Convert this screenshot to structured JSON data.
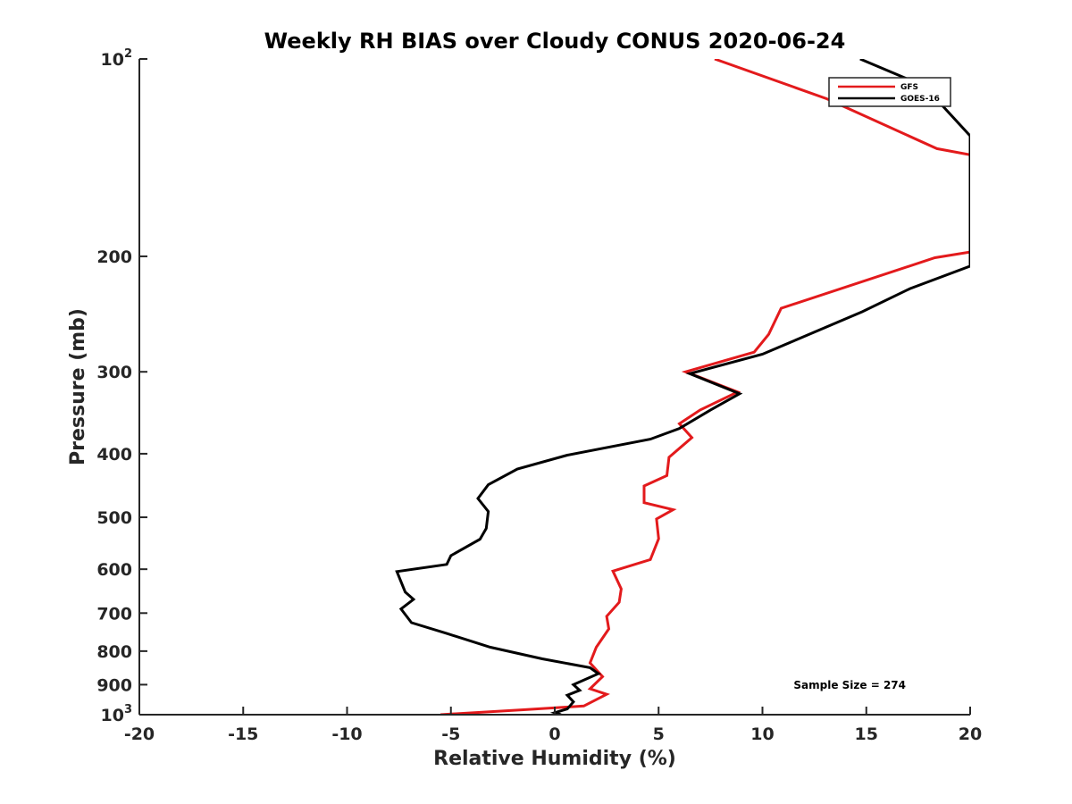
{
  "chart_data": {
    "type": "line",
    "title": "Weekly RH BIAS over Cloudy CONUS 2020-06-24",
    "xlabel": "Relative Humidity (%)",
    "ylabel": "Pressure (mb)",
    "xlim": [
      -20,
      20
    ],
    "ylim": [
      100,
      1000
    ],
    "yscale": "log",
    "y_reversed": true,
    "x_ticks": [
      "-20",
      "-15",
      "-10",
      "-5",
      "0",
      "5",
      "10",
      "15",
      "20"
    ],
    "y_ticks": [
      {
        "value": 100,
        "base": "10",
        "exp": "2"
      },
      {
        "value": 200,
        "label": "200"
      },
      {
        "value": 300,
        "label": "300"
      },
      {
        "value": 400,
        "label": "400"
      },
      {
        "value": 500,
        "label": "500"
      },
      {
        "value": 600,
        "label": "600"
      },
      {
        "value": 700,
        "label": "700"
      },
      {
        "value": 800,
        "label": "800"
      },
      {
        "value": 900,
        "label": "900"
      },
      {
        "value": 1000,
        "base": "10",
        "exp": "3"
      }
    ],
    "legend_position": "top-right",
    "annotation": "Sample Size = 274",
    "series": [
      {
        "name": "GFS",
        "color": "#e31a1c",
        "points": [
          [
            7.7,
            100
          ],
          [
            13.1,
            115
          ],
          [
            18.4,
            137
          ],
          [
            20,
            140
          ],
          [
            20,
            197
          ],
          [
            18.3,
            201
          ],
          [
            10.9,
            240
          ],
          [
            10.3,
            263
          ],
          [
            9.6,
            280
          ],
          [
            6.3,
            300
          ],
          [
            8.8,
            322
          ],
          [
            7.0,
            343
          ],
          [
            6.0,
            360
          ],
          [
            6.6,
            378
          ],
          [
            5.5,
            405
          ],
          [
            5.4,
            432
          ],
          [
            4.3,
            448
          ],
          [
            4.3,
            475
          ],
          [
            5.7,
            487
          ],
          [
            4.9,
            503
          ],
          [
            5.0,
            539
          ],
          [
            4.6,
            580
          ],
          [
            2.8,
            604
          ],
          [
            3.2,
            643
          ],
          [
            3.1,
            674
          ],
          [
            2.5,
            708
          ],
          [
            2.6,
            740
          ],
          [
            2.0,
            789
          ],
          [
            1.7,
            834
          ],
          [
            2.3,
            875
          ],
          [
            1.7,
            913
          ],
          [
            2.5,
            931
          ],
          [
            1.4,
            970
          ],
          [
            -1.5,
            983
          ],
          [
            -5.5,
            1000
          ]
        ]
      },
      {
        "name": "GOES-16",
        "color": "#000000",
        "points": [
          [
            14.7,
            100
          ],
          [
            17.8,
            110
          ],
          [
            20,
            131
          ],
          [
            20,
            207
          ],
          [
            17.1,
            224
          ],
          [
            14.8,
            243
          ],
          [
            10.0,
            282
          ],
          [
            6.5,
            302
          ],
          [
            8.9,
            324
          ],
          [
            7.5,
            343
          ],
          [
            6.0,
            366
          ],
          [
            4.6,
            380
          ],
          [
            0.6,
            402
          ],
          [
            -1.8,
            422
          ],
          [
            -3.2,
            446
          ],
          [
            -3.7,
            468
          ],
          [
            -3.2,
            490
          ],
          [
            -3.3,
            520
          ],
          [
            -3.6,
            540
          ],
          [
            -5.0,
            572
          ],
          [
            -5.2,
            590
          ],
          [
            -7.6,
            605
          ],
          [
            -7.2,
            650
          ],
          [
            -6.8,
            667
          ],
          [
            -7.4,
            690
          ],
          [
            -6.9,
            724
          ],
          [
            -5.2,
            752
          ],
          [
            -3.1,
            789
          ],
          [
            -0.6,
            822
          ],
          [
            1.7,
            848
          ],
          [
            2.1,
            866
          ],
          [
            0.9,
            900
          ],
          [
            1.2,
            918
          ],
          [
            0.6,
            934
          ],
          [
            0.9,
            956
          ],
          [
            0.6,
            980
          ],
          [
            0.0,
            993
          ],
          [
            0.3,
            1000
          ]
        ]
      }
    ]
  }
}
